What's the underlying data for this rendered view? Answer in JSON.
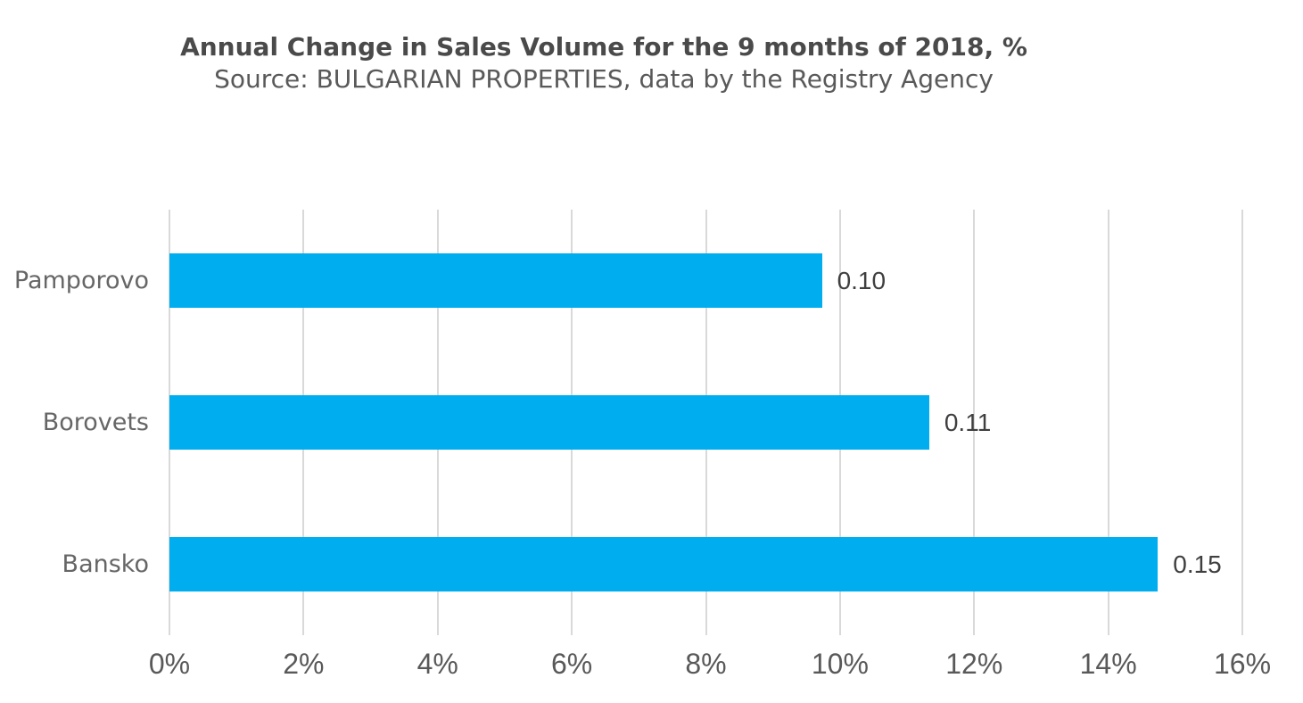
{
  "chart": {
    "title": "Annual Change in Sales Volume for the 9 months of 2018, %",
    "subtitle": "Source: BULGARIAN PROPERTIES, data by the Registry Agency"
  },
  "chart_data": {
    "type": "bar",
    "orientation": "horizontal",
    "title": "Annual Change in Sales Volume for the 9 months of 2018, %",
    "subtitle": "Source: BULGARIAN PROPERTIES, data by the Registry Agency",
    "categories": [
      "Pamporovo",
      "Borovets",
      "Bansko"
    ],
    "values_pct": [
      9.73,
      11.33,
      14.74
    ],
    "data_labels": [
      "0.10",
      "0.11",
      "0.15"
    ],
    "xlabel": "",
    "ylabel": "",
    "x_axis": {
      "min": 0,
      "max": 16,
      "tick_values": [
        0,
        2,
        4,
        6,
        8,
        10,
        12,
        14,
        16
      ],
      "tick_labels": [
        "0%",
        "2%",
        "4%",
        "6%",
        "8%",
        "10%",
        "12%",
        "14%",
        "16%"
      ]
    },
    "grid": "vertical-only",
    "legend": "none",
    "colors": {
      "bar": "#00aeef",
      "gridline": "#d9d9d9",
      "title_text": "#4a4a4a",
      "subtitle_text": "#595959",
      "category_text": "#666666",
      "tick_text": "#595959",
      "data_label_text": "#3f3f3f",
      "background": "#ffffff"
    }
  }
}
